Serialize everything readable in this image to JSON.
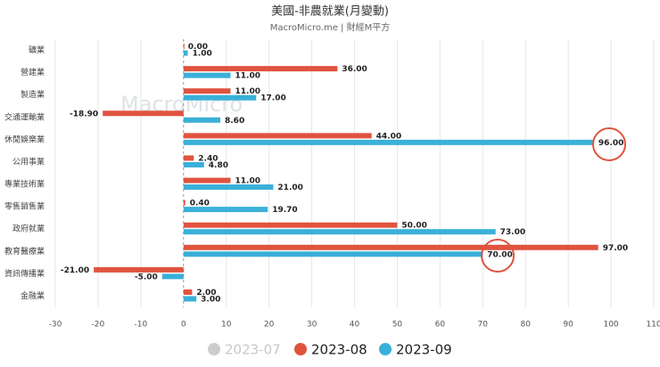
{
  "chart_data": {
    "type": "hbar",
    "title": "美國-非農就業(月變動)",
    "subtitle": "MacroMicro.me | 財經M平方",
    "watermark": "MacroMicro",
    "categories": [
      "礦業",
      "營建業",
      "製造業",
      "交通運輸業",
      "休閒娛樂業",
      "公用事業",
      "專業技術業",
      "零售銷售業",
      "政府就業",
      "教育醫療業",
      "資訊傳播業",
      "金融業"
    ],
    "series": [
      {
        "name": "2023-07",
        "color": "#cccccc",
        "visible": false,
        "values": [
          null,
          null,
          null,
          null,
          null,
          null,
          null,
          null,
          null,
          null,
          null,
          null
        ]
      },
      {
        "name": "2023-08",
        "color": "#e0533f",
        "visible": true,
        "values": [
          0,
          36,
          11,
          -18.9,
          44,
          2.4,
          11,
          0.4,
          50,
          97,
          -21,
          2
        ],
        "value_labels": [
          "0.00",
          "36.00",
          "11.00",
          "-18.90",
          "44.00",
          "2.40",
          "11.00",
          "0.40",
          "50.00",
          "97.00",
          "-21.00",
          "2.00"
        ]
      },
      {
        "name": "2023-09",
        "color": "#3ab0d8",
        "visible": true,
        "values": [
          1,
          11,
          17,
          8.6,
          96,
          4.8,
          21,
          19.7,
          73,
          70,
          -5,
          3
        ],
        "value_labels": [
          "1.00",
          "11.00",
          "17.00",
          "8.60",
          "96.00",
          "4.80",
          "21.00",
          "19.70",
          "73.00",
          "70.00",
          "-5.00",
          "3.00"
        ]
      }
    ],
    "xlim": [
      -30,
      110
    ],
    "xticks": [
      -30,
      -20,
      -10,
      0,
      10,
      20,
      30,
      40,
      50,
      60,
      70,
      80,
      90,
      100,
      110
    ],
    "grid": true
  }
}
